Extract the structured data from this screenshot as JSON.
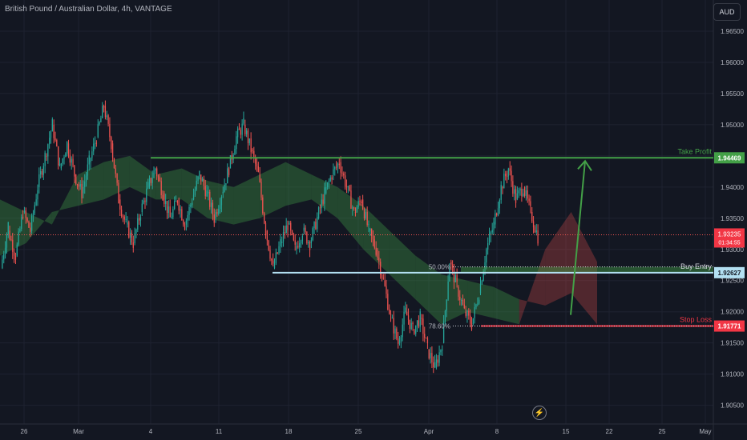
{
  "header": {
    "title": "British Pound / Australian Dollar, 4h, VANTAGE",
    "currency": "AUD"
  },
  "icons": {
    "flash": "lightning-icon"
  },
  "colors": {
    "background": "#131722",
    "bull": "#26a69a",
    "bear": "#ef5350",
    "take_profit": "#43a047",
    "buy_entry": "#b3e0f2",
    "stop_loss": "#f23645",
    "grid": "#1e2230"
  },
  "chart_data": {
    "type": "candlestick",
    "symbol": "GBPAUD",
    "timeframe": "4h",
    "ylim": [
      1.902,
      1.97
    ],
    "y_ticks": [
      1.965,
      1.96,
      1.955,
      1.95,
      1.945,
      1.94,
      1.935,
      1.93,
      1.925,
      1.92,
      1.915,
      1.91,
      1.905
    ],
    "y_tick_labels": [
      "1.96500",
      "1.96000",
      "1.95500",
      "1.95000",
      "1.94500",
      "1.94000",
      "1.93500",
      "1.93000",
      "1.92500",
      "1.92000",
      "1.91500",
      "1.91000",
      "1.90500"
    ],
    "x_tick_labels": [
      "26",
      "Mar",
      "4",
      "11",
      "18",
      "25",
      "Apr",
      "8",
      "15",
      "22",
      "25",
      "May",
      "6"
    ],
    "price_path": [
      [
        1.927,
        1.934
      ],
      [
        1.933,
        1.929
      ],
      [
        1.929,
        1.936
      ],
      [
        1.936,
        1.933
      ],
      [
        1.933,
        1.94
      ],
      [
        1.94,
        1.945
      ],
      [
        1.945,
        1.95
      ],
      [
        1.95,
        1.943
      ],
      [
        1.943,
        1.947
      ],
      [
        1.947,
        1.942
      ],
      [
        1.942,
        1.939
      ],
      [
        1.939,
        1.944
      ],
      [
        1.944,
        1.948
      ],
      [
        1.948,
        1.953
      ],
      [
        1.953,
        1.947
      ],
      [
        1.947,
        1.938
      ],
      [
        1.938,
        1.934
      ],
      [
        1.934,
        1.931
      ],
      [
        1.931,
        1.936
      ],
      [
        1.936,
        1.94
      ],
      [
        1.94,
        1.943
      ],
      [
        1.943,
        1.939
      ],
      [
        1.939,
        1.935
      ],
      [
        1.935,
        1.938
      ],
      [
        1.938,
        1.934
      ],
      [
        1.934,
        1.938
      ],
      [
        1.938,
        1.942
      ],
      [
        1.942,
        1.939
      ],
      [
        1.939,
        1.935
      ],
      [
        1.935,
        1.939
      ],
      [
        1.939,
        1.943
      ],
      [
        1.943,
        1.948
      ],
      [
        1.948,
        1.95
      ],
      [
        1.95,
        1.946
      ],
      [
        1.946,
        1.942
      ],
      [
        1.942,
        1.933
      ],
      [
        1.933,
        1.927
      ],
      [
        1.927,
        1.931
      ],
      [
        1.931,
        1.934
      ],
      [
        1.934,
        1.93
      ],
      [
        1.93,
        1.933
      ],
      [
        1.933,
        1.931
      ],
      [
        1.931,
        1.935
      ],
      [
        1.935,
        1.939
      ],
      [
        1.939,
        1.942
      ],
      [
        1.942,
        1.944
      ],
      [
        1.944,
        1.94
      ],
      [
        1.94,
        1.936
      ],
      [
        1.936,
        1.938
      ],
      [
        1.938,
        1.933
      ],
      [
        1.933,
        1.93
      ],
      [
        1.93,
        1.925
      ],
      [
        1.925,
        1.919
      ],
      [
        1.919,
        1.915
      ],
      [
        1.915,
        1.92
      ],
      [
        1.92,
        1.917
      ],
      [
        1.917,
        1.919
      ],
      [
        1.919,
        1.914
      ],
      [
        1.914,
        1.911
      ],
      [
        1.911,
        1.915
      ],
      [
        1.915,
        1.928
      ],
      [
        1.928,
        1.924
      ],
      [
        1.924,
        1.92
      ],
      [
        1.92,
        1.918
      ],
      [
        1.918,
        1.923
      ],
      [
        1.923,
        1.93
      ],
      [
        1.93,
        1.934
      ],
      [
        1.934,
        1.94
      ],
      [
        1.94,
        1.943
      ],
      [
        1.943,
        1.938
      ],
      [
        1.938,
        1.94
      ],
      [
        1.94,
        1.936
      ],
      [
        1.936,
        1.932
      ]
    ],
    "cloud": [
      [
        1.938,
        1.929
      ],
      [
        1.936,
        1.931
      ],
      [
        1.934,
        1.936
      ],
      [
        1.942,
        1.937
      ],
      [
        1.944,
        1.938
      ],
      [
        1.945,
        1.94
      ],
      [
        1.942,
        1.938
      ],
      [
        1.943,
        1.938
      ],
      [
        1.941,
        1.935
      ],
      [
        1.94,
        1.934
      ],
      [
        1.942,
        1.935
      ],
      [
        1.944,
        1.937
      ],
      [
        1.942,
        1.938
      ],
      [
        1.94,
        1.935
      ],
      [
        1.937,
        1.93
      ],
      [
        1.933,
        1.926
      ],
      [
        1.929,
        1.922
      ],
      [
        1.926,
        1.918
      ],
      [
        1.925,
        1.92
      ],
      [
        1.924,
        1.919
      ],
      [
        1.922,
        1.918
      ],
      [
        1.921,
        1.93
      ],
      [
        1.923,
        1.936
      ],
      [
        1.918,
        1.928
      ]
    ],
    "levels": [
      {
        "name": "Take Profit",
        "value": 1.94469,
        "label": "1.94469",
        "color": "#43a047"
      },
      {
        "name": "Buy Entry",
        "value": 1.92627,
        "label": "1.92627",
        "color": "#b3e0f2"
      },
      {
        "name": "Stop Loss",
        "value": 1.91771,
        "label": "1.91771",
        "color": "#f23645"
      }
    ],
    "current_price": {
      "value": 1.93235,
      "label": "1.93235",
      "countdown": "01:34:55"
    },
    "fib": [
      {
        "label": "50.00%",
        "value": 1.9272
      },
      {
        "label": "78.60%",
        "value": 1.91771
      }
    ],
    "projection_arrow": {
      "from": 1.9195,
      "to": 1.94469
    }
  }
}
